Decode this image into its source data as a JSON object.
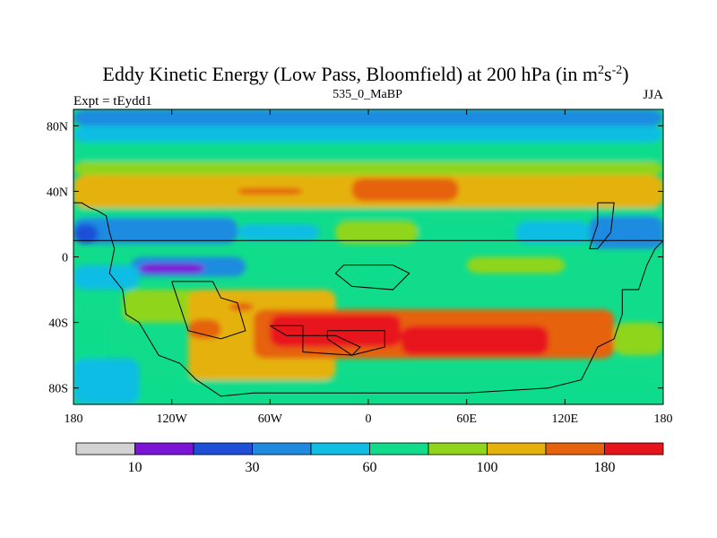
{
  "chart_data": {
    "type": "heatmap",
    "title": "Eddy Kinetic Energy (Low Pass, Bloomfield) at 200 hPa (in m",
    "title_sup1": "2",
    "title_mid": "s",
    "title_sup2": "-2",
    "title_end": ")",
    "subtitle_left": "Expt = tEydd1",
    "subtitle_center": "535_0_MaBP",
    "subtitle_right": "JJA",
    "xlim": [
      -180,
      180
    ],
    "ylim": [
      -90,
      90
    ],
    "x_ticks": [
      {
        "value": -180,
        "label": "180"
      },
      {
        "value": -120,
        "label": "120W"
      },
      {
        "value": -60,
        "label": "60W"
      },
      {
        "value": 0,
        "label": "0"
      },
      {
        "value": 60,
        "label": "60E"
      },
      {
        "value": 120,
        "label": "120E"
      },
      {
        "value": 180,
        "label": "180"
      }
    ],
    "y_ticks": [
      {
        "value": 80,
        "label": "80N"
      },
      {
        "value": 40,
        "label": "40N"
      },
      {
        "value": 0,
        "label": "0"
      },
      {
        "value": -40,
        "label": "40S"
      },
      {
        "value": -80,
        "label": "80S"
      }
    ],
    "colorbar": {
      "colors": [
        "#d3d3d3",
        "#7b14d6",
        "#1f4fd9",
        "#1e8be0",
        "#10bde3",
        "#11dc8c",
        "#8fd51b",
        "#e5b20c",
        "#e6620c",
        "#e8141c"
      ],
      "labels": [
        {
          "boundary": 1,
          "label": "10"
        },
        {
          "boundary": 3,
          "label": "30"
        },
        {
          "boundary": 5,
          "label": "60"
        },
        {
          "boundary": 7,
          "label": "100"
        },
        {
          "boundary": 9,
          "label": "180"
        }
      ]
    },
    "base_level": 5,
    "regions": [
      {
        "lon": [
          -180,
          180
        ],
        "lat": [
          80,
          90
        ],
        "level": 3
      },
      {
        "lon": [
          -180,
          180
        ],
        "lat": [
          70,
          80
        ],
        "level": 4
      },
      {
        "lon": [
          -180,
          180
        ],
        "lat": [
          58,
          70
        ],
        "level": 5
      },
      {
        "lon": [
          -180,
          180
        ],
        "lat": [
          50,
          58
        ],
        "level": 6
      },
      {
        "lon": [
          -180,
          180
        ],
        "lat": [
          30,
          50
        ],
        "level": 7
      },
      {
        "lon": [
          -80,
          -40
        ],
        "lat": [
          38,
          42
        ],
        "level": 8
      },
      {
        "lon": [
          -10,
          55
        ],
        "lat": [
          34,
          48
        ],
        "level": 8
      },
      {
        "lon": [
          -180,
          180
        ],
        "lat": [
          24,
          30
        ],
        "level": 5
      },
      {
        "lon": [
          -180,
          -80
        ],
        "lat": [
          8,
          24
        ],
        "level": 3
      },
      {
        "lon": [
          -80,
          -30
        ],
        "lat": [
          10,
          20
        ],
        "level": 4
      },
      {
        "lon": [
          -20,
          30
        ],
        "lat": [
          8,
          22
        ],
        "level": 6
      },
      {
        "lon": [
          30,
          90
        ],
        "lat": [
          10,
          22
        ],
        "level": 5
      },
      {
        "lon": [
          90,
          135
        ],
        "lat": [
          8,
          22
        ],
        "level": 4
      },
      {
        "lon": [
          135,
          180
        ],
        "lat": [
          5,
          25
        ],
        "level": 3
      },
      {
        "lon": [
          -180,
          -165
        ],
        "lat": [
          8,
          20
        ],
        "level": 2
      },
      {
        "lon": [
          -145,
          -75
        ],
        "lat": [
          -12,
          0
        ],
        "level": 3
      },
      {
        "lon": [
          -140,
          -100
        ],
        "lat": [
          -10,
          -4
        ],
        "level": 1
      },
      {
        "lon": [
          -10,
          20
        ],
        "lat": [
          -15,
          -2
        ],
        "level": 5
      },
      {
        "lon": [
          60,
          120
        ],
        "lat": [
          -10,
          0
        ],
        "level": 6
      },
      {
        "lon": [
          -180,
          -140
        ],
        "lat": [
          -20,
          -5
        ],
        "level": 4
      },
      {
        "lon": [
          -150,
          -100
        ],
        "lat": [
          -40,
          -20
        ],
        "level": 6
      },
      {
        "lon": [
          -110,
          -20
        ],
        "lat": [
          -75,
          -20
        ],
        "level": 7
      },
      {
        "lon": [
          -110,
          -90
        ],
        "lat": [
          -50,
          -38
        ],
        "level": 8
      },
      {
        "lon": [
          -85,
          -70
        ],
        "lat": [
          -33,
          -28
        ],
        "level": 8
      },
      {
        "lon": [
          -70,
          150
        ],
        "lat": [
          -62,
          -32
        ],
        "level": 8
      },
      {
        "lon": [
          -60,
          20
        ],
        "lat": [
          -55,
          -35
        ],
        "level": 9
      },
      {
        "lon": [
          20,
          110
        ],
        "lat": [
          -60,
          -42
        ],
        "level": 9
      },
      {
        "lon": [
          -180,
          -160
        ],
        "lat": [
          -75,
          -40
        ],
        "level": 5
      },
      {
        "lon": [
          150,
          180
        ],
        "lat": [
          -60,
          -40
        ],
        "level": 6
      },
      {
        "lon": [
          -180,
          180
        ],
        "lat": [
          -90,
          -75
        ],
        "level": 5
      },
      {
        "lon": [
          -180,
          -140
        ],
        "lat": [
          -90,
          -62
        ],
        "level": 4
      }
    ],
    "outline": [
      [
        -180,
        33
      ],
      [
        -175,
        33
      ],
      [
        -170,
        30
      ],
      [
        -165,
        28
      ],
      [
        -160,
        25
      ],
      [
        -158,
        15
      ],
      [
        -155,
        5
      ],
      [
        -158,
        -10
      ],
      [
        -150,
        -20
      ],
      [
        -148,
        -35
      ],
      [
        -140,
        -40
      ],
      [
        -128,
        -60
      ],
      [
        -115,
        -65
      ],
      [
        -105,
        -75
      ],
      [
        -90,
        -85
      ],
      [
        -70,
        -83
      ],
      [
        -50,
        -83
      ],
      [
        0,
        -83
      ],
      [
        60,
        -83
      ],
      [
        110,
        -80
      ],
      [
        130,
        -75
      ],
      [
        140,
        -55
      ],
      [
        150,
        -50
      ],
      [
        155,
        -35
      ],
      [
        155,
        -20
      ],
      [
        165,
        -20
      ],
      [
        170,
        -5
      ],
      [
        175,
        5
      ],
      [
        180,
        10
      ],
      [
        -180,
        10
      ]
    ],
    "islands": [
      [
        [
          -60,
          -42
        ],
        [
          -40,
          -42
        ],
        [
          -40,
          -58
        ],
        [
          -10,
          -60
        ],
        [
          -5,
          -55
        ],
        [
          -20,
          -48
        ],
        [
          -50,
          -48
        ],
        [
          -60,
          -42
        ]
      ],
      [
        [
          -25,
          -45
        ],
        [
          10,
          -45
        ],
        [
          10,
          -55
        ],
        [
          -10,
          -60
        ],
        [
          -25,
          -50
        ],
        [
          -25,
          -45
        ]
      ],
      [
        [
          -15,
          -5
        ],
        [
          15,
          -5
        ],
        [
          25,
          -10
        ],
        [
          15,
          -20
        ],
        [
          -10,
          -18
        ],
        [
          -20,
          -10
        ],
        [
          -15,
          -5
        ]
      ],
      [
        [
          140,
          33
        ],
        [
          150,
          33
        ],
        [
          148,
          15
        ],
        [
          140,
          5
        ],
        [
          135,
          5
        ],
        [
          140,
          20
        ],
        [
          140,
          33
        ]
      ],
      [
        [
          -120,
          -15
        ],
        [
          -95,
          -15
        ],
        [
          -90,
          -25
        ],
        [
          -80,
          -28
        ],
        [
          -75,
          -45
        ],
        [
          -90,
          -50
        ],
        [
          -110,
          -45
        ],
        [
          -115,
          -30
        ],
        [
          -120,
          -15
        ]
      ]
    ]
  }
}
